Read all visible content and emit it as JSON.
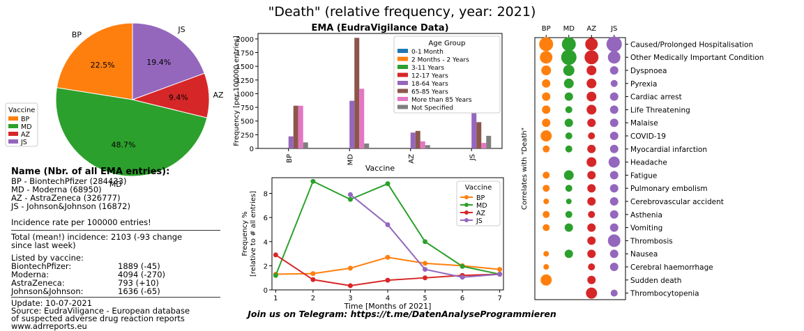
{
  "title": "\"Death\" (relative frequency, year: 2021)",
  "telegram": "Join us on Telegram: https://t.me/DatenAnalyseProgrammieren",
  "colors": {
    "BP": "#ff7f0e",
    "MD": "#2ca02c",
    "AZ": "#d62728",
    "JS": "#9467bd"
  },
  "info": {
    "heading": "Name  (Nbr. of all EMA entries):",
    "names": [
      "BP - BiontechPfizer (284433)",
      "MD - Moderna (68950)",
      "AZ - AstraZeneca (326777)",
      "JS - Johnson&Johnson (16872)"
    ],
    "incidence_note": "Incidence rate per 100000 entries!",
    "total_line1": "Total (mean!) incidence: 2103 (-93 change",
    "total_line2": "since last week)",
    "listed_heading": "Listed by vaccine:",
    "listed": [
      {
        "name": "BiontechPfizer:",
        "value": "1889 (-45)"
      },
      {
        "name": "Moderna:",
        "value": "4094 (-270)"
      },
      {
        "name": "AstraZeneca:",
        "value": "793 (+10)"
      },
      {
        "name": "Johnson&Johnson:",
        "value": "1636 (-65)"
      }
    ],
    "update": "Update: 10-07-2021",
    "source1": "Source: EudraViligance - European database",
    "source2": "of suspected adverse drug reaction reports",
    "source3": "www.adrreports.eu"
  },
  "chart_data": [
    {
      "type": "pie",
      "legend_title": "Vaccine",
      "legend_position": "lower-left",
      "labels": [
        "BP",
        "MD",
        "AZ",
        "JS"
      ],
      "values": [
        22.5,
        48.7,
        9.4,
        19.4
      ],
      "value_labels": [
        "22.5%",
        "48.7%",
        "9.4%",
        "19.4%"
      ]
    },
    {
      "type": "bar",
      "title": "EMA (EudraVigilance Data)",
      "xlabel": "Vaccine",
      "ylabel": "Frequency [per 100000 entries]",
      "ylim": [
        0,
        2100
      ],
      "yticks": [
        0,
        250,
        500,
        750,
        1000,
        1250,
        1500,
        1750,
        2000
      ],
      "grid": false,
      "legend_title": "Age Group",
      "legend_position": "top-right",
      "categories": [
        "BP",
        "MD",
        "AZ",
        "JS"
      ],
      "series": [
        {
          "name": "0-1 Month",
          "color": "#1f77b4",
          "values": [
            0,
            0,
            0,
            0
          ]
        },
        {
          "name": "2 Months - 2 Years",
          "color": "#ff7f0e",
          "values": [
            0,
            0,
            0,
            0
          ]
        },
        {
          "name": "3-11 Years",
          "color": "#2ca02c",
          "values": [
            0,
            0,
            0,
            0
          ]
        },
        {
          "name": "12-17 Years",
          "color": "#d62728",
          "values": [
            0,
            0,
            0,
            0
          ]
        },
        {
          "name": "18-64 Years",
          "color": "#9467bd",
          "values": [
            220,
            870,
            290,
            800
          ]
        },
        {
          "name": "65-85 Years",
          "color": "#8c564b",
          "values": [
            780,
            2020,
            320,
            480
          ]
        },
        {
          "name": "More than 85 Years",
          "color": "#e377c2",
          "values": [
            780,
            1090,
            130,
            100
          ]
        },
        {
          "name": "Not Specified",
          "color": "#7f7f7f",
          "values": [
            110,
            90,
            60,
            230
          ]
        }
      ]
    },
    {
      "type": "line",
      "xlabel": "Time [Months of 2021]",
      "ylabel": "Frequency %",
      "ylabel2": "[relative to # all entries]",
      "xlim": [
        0.9,
        7.1
      ],
      "ylim": [
        0,
        9.3
      ],
      "xticks": [
        1,
        2,
        3,
        4,
        5,
        6,
        7
      ],
      "yticks": [
        0,
        2,
        4,
        6,
        8
      ],
      "grid": false,
      "legend_title": "Vaccine",
      "legend_position": "top-right",
      "series": [
        {
          "name": "BP",
          "color": "#ff7f0e",
          "x": [
            1,
            2,
            3,
            4,
            5,
            6,
            7
          ],
          "y": [
            1.3,
            1.35,
            1.8,
            2.7,
            2.2,
            2.0,
            1.7
          ]
        },
        {
          "name": "MD",
          "color": "#2ca02c",
          "x": [
            1,
            2,
            3,
            4,
            5,
            6,
            7
          ],
          "y": [
            1.2,
            9.0,
            7.5,
            8.8,
            4.0,
            1.95,
            1.3
          ]
        },
        {
          "name": "AZ",
          "color": "#d62728",
          "x": [
            1,
            2,
            3,
            4,
            5,
            6,
            7
          ],
          "y": [
            2.9,
            0.85,
            0.35,
            0.8,
            1.0,
            1.2,
            1.3
          ]
        },
        {
          "name": "JS",
          "color": "#9467bd",
          "x": [
            3,
            4,
            5,
            6,
            7
          ],
          "y": [
            7.9,
            5.4,
            1.7,
            1.05,
            1.3
          ]
        }
      ]
    },
    {
      "type": "scatter",
      "ylabel": "Correlates with \"Death\"",
      "columns": [
        "BP",
        "MD",
        "AZ",
        "JS"
      ],
      "rows": [
        "Caused/Prolonged Hospitalisation",
        "Other Medically Important Condition",
        "Dyspnoea",
        "Pyrexia",
        "Cardiac arrest",
        "Life Threatening",
        "Malaise",
        "COVID-19",
        "Myocardial infarction",
        "Headache",
        "Fatigue",
        "Pulmonary embolism",
        "Cerebrovascular accident",
        "Asthenia",
        "Vomiting",
        "Thrombosis",
        "Nausea",
        "Cerebral haemorrhage",
        "Sudden death",
        "Thrombocytopenia"
      ],
      "sizes": [
        [
          10,
          10,
          9,
          11
        ],
        [
          9,
          11,
          10,
          9
        ],
        [
          7,
          8,
          7,
          6
        ],
        [
          6,
          7,
          7,
          5
        ],
        [
          6,
          6,
          7,
          6
        ],
        [
          6,
          5,
          7,
          6
        ],
        [
          6,
          6,
          6,
          6
        ],
        [
          8,
          5,
          5,
          6
        ],
        [
          5,
          5,
          6,
          6
        ],
        [
          0,
          0,
          7,
          8
        ],
        [
          5,
          7,
          6,
          6
        ],
        [
          5,
          5,
          6,
          6
        ],
        [
          4,
          4,
          6,
          6
        ],
        [
          5,
          5,
          5,
          6
        ],
        [
          5,
          6,
          6,
          6
        ],
        [
          0,
          0,
          6,
          9
        ],
        [
          4,
          6,
          6,
          6
        ],
        [
          4,
          0,
          5,
          6
        ],
        [
          8,
          0,
          6,
          0
        ],
        [
          0,
          0,
          8,
          5
        ]
      ]
    }
  ]
}
